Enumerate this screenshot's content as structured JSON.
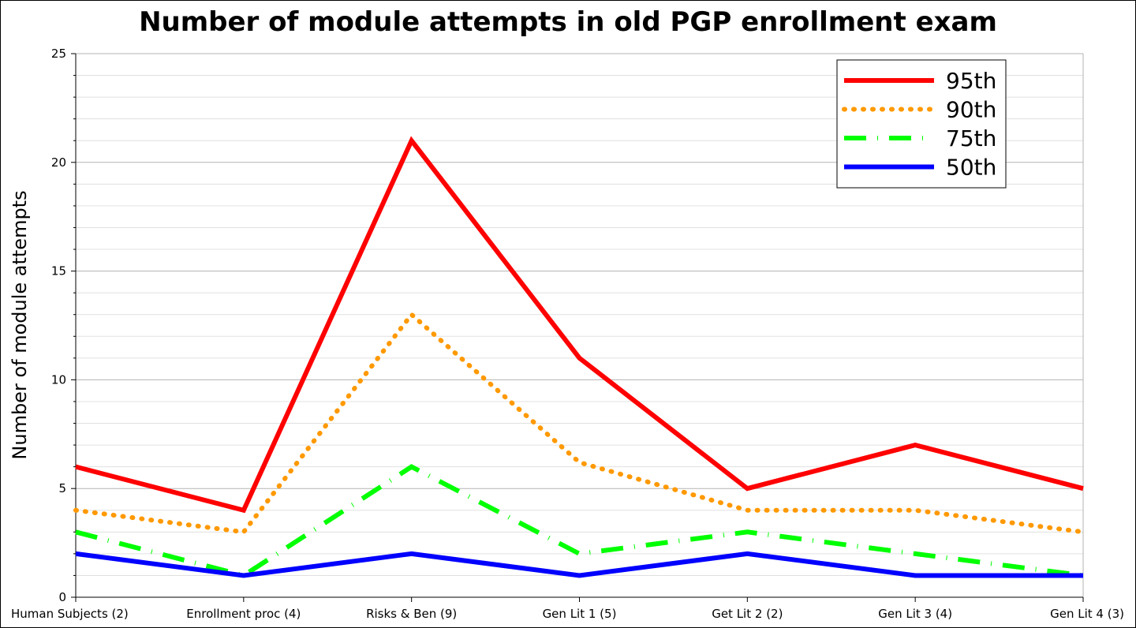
{
  "chart_data": {
    "type": "line",
    "title": "Number of module attempts in old PGP enrollment exam",
    "xlabel": "",
    "ylabel": "Number of module attempts",
    "ylim": [
      0,
      25
    ],
    "yticks": [
      0,
      5,
      10,
      15,
      20,
      25
    ],
    "grid": true,
    "legend_position": "top-right",
    "categories": [
      "Human Subjects (2)",
      "Enrollment proc (4)",
      "Risks & Ben (9)",
      "Gen Lit 1 (5)",
      "Get Lit 2 (2)",
      "Gen Lit 3 (4)",
      "Gen Lit 4 (3)"
    ],
    "series": [
      {
        "name": "95th",
        "values": [
          6,
          4,
          21,
          11,
          5,
          7,
          5
        ],
        "color": "#ff0000",
        "style": "solid"
      },
      {
        "name": "90th",
        "values": [
          4,
          3,
          13,
          6.2,
          4,
          4,
          3
        ],
        "color": "#ff9900",
        "style": "dotted"
      },
      {
        "name": "75th",
        "values": [
          3,
          1,
          6,
          2,
          3,
          2,
          1
        ],
        "color": "#00ff00",
        "style": "dashdot"
      },
      {
        "name": "50th",
        "values": [
          2,
          1,
          2,
          1,
          2,
          1,
          1
        ],
        "color": "#0000ff",
        "style": "solid"
      }
    ]
  }
}
